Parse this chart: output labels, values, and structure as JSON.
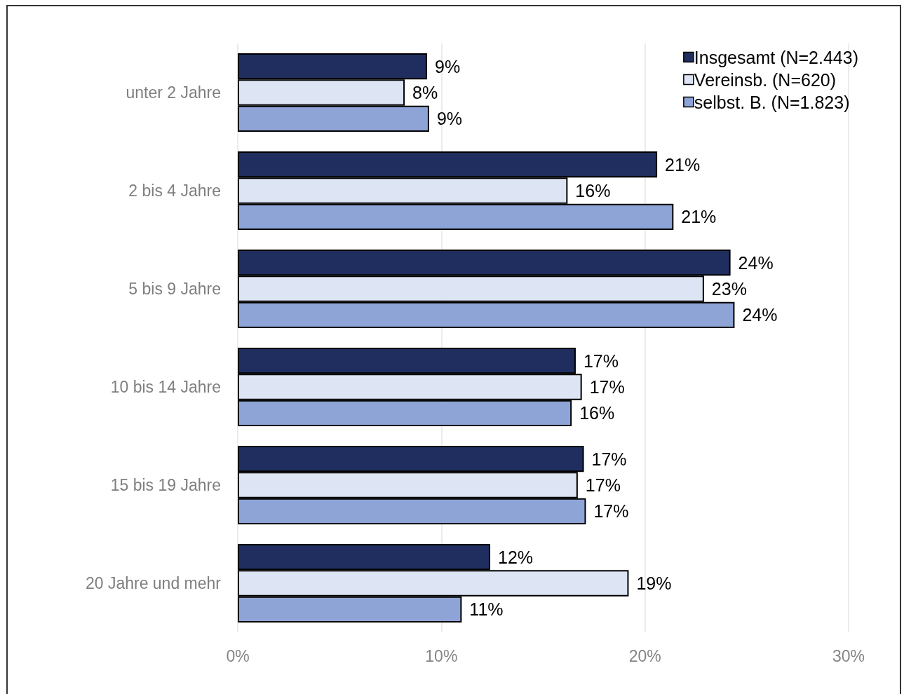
{
  "chart_data": {
    "type": "bar",
    "orientation": "horizontal",
    "categories": [
      "unter 2 Jahre",
      "2 bis 4 Jahre",
      "5 bis 9 Jahre",
      "10 bis 14 Jahre",
      "15 bis 19 Jahre",
      "20 Jahre und mehr"
    ],
    "series": [
      {
        "name": "Insgesamt (N=2.443)",
        "color": "#1f2e5e",
        "values": [
          9.3,
          20.6,
          24.2,
          16.6,
          17.0,
          12.4
        ],
        "value_labels": [
          "9%",
          "21%",
          "24%",
          "17%",
          "17%",
          "12%"
        ]
      },
      {
        "name": "Vereinsb. (N=620)",
        "color": "#dde4f3",
        "values": [
          8.2,
          16.2,
          22.9,
          16.9,
          16.7,
          19.2
        ],
        "value_labels": [
          "8%",
          "16%",
          "23%",
          "17%",
          "17%",
          "19%"
        ]
      },
      {
        "name": "selbst. B. (N=1.823)",
        "color": "#8ea3d6",
        "values": [
          9.4,
          21.4,
          24.4,
          16.4,
          17.1,
          11.0
        ],
        "value_labels": [
          "9%",
          "21%",
          "24%",
          "16%",
          "17%",
          "11%"
        ]
      }
    ],
    "xlim": [
      0,
      30
    ],
    "xticks": [
      {
        "value": 0,
        "label": "0%"
      },
      {
        "value": 10,
        "label": "10%"
      },
      {
        "value": 20,
        "label": "20%"
      },
      {
        "value": 30,
        "label": "30%"
      }
    ],
    "grid": "x",
    "legend": "top right"
  }
}
